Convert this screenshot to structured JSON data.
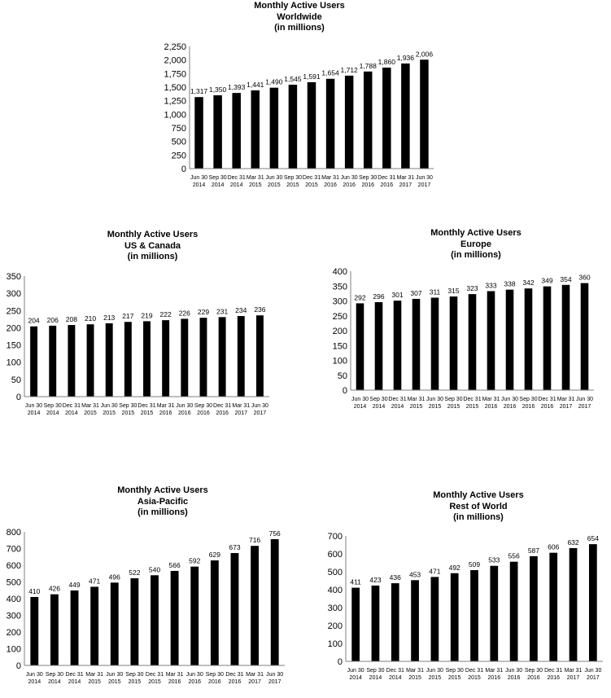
{
  "chart_data": [
    {
      "id": "worldwide",
      "type": "bar",
      "title": "Monthly Active Users",
      "subtitle": "Worldwide",
      "unit_label": "(in millions)",
      "categories": [
        [
          "Jun 30",
          "2014"
        ],
        [
          "Sep 30",
          "2014"
        ],
        [
          "Dec 31",
          "2014"
        ],
        [
          "Mar 31",
          "2015"
        ],
        [
          "Jun 30",
          "2015"
        ],
        [
          "Sep 30",
          "2015"
        ],
        [
          "Dec 31",
          "2015"
        ],
        [
          "Mar 31",
          "2016"
        ],
        [
          "Jun 30",
          "2016"
        ],
        [
          "Sep 30",
          "2016"
        ],
        [
          "Dec 31",
          "2016"
        ],
        [
          "Mar 31",
          "2017"
        ],
        [
          "Jun 30",
          "2017"
        ]
      ],
      "values": [
        1317,
        1350,
        1393,
        1441,
        1490,
        1545,
        1591,
        1654,
        1712,
        1788,
        1860,
        1936,
        2006
      ],
      "value_labels": [
        "1,317",
        "1,350",
        "1,393",
        "1,441",
        "1,490",
        "1,545",
        "1,591",
        "1,654",
        "1,712",
        "1,788",
        "1,860",
        "1,936",
        "2,006"
      ],
      "ylim": [
        0,
        2250
      ],
      "yticks": [
        0,
        250,
        500,
        750,
        1000,
        1250,
        1500,
        1750,
        2000,
        2250
      ],
      "ytick_labels": [
        "0",
        "250",
        "500",
        "750",
        "1,000",
        "1,250",
        "1,500",
        "1,750",
        "2,000",
        "2,250"
      ],
      "bar_color": "#000000",
      "grid": false
    },
    {
      "id": "us-canada",
      "type": "bar",
      "title": "Monthly Active Users",
      "subtitle": "US & Canada",
      "unit_label": "(in millions)",
      "categories": [
        [
          "Jun 30",
          "2014"
        ],
        [
          "Sep 30",
          "2014"
        ],
        [
          "Dec 31",
          "2014"
        ],
        [
          "Mar 31",
          "2015"
        ],
        [
          "Jun 30",
          "2015"
        ],
        [
          "Sep 30",
          "2015"
        ],
        [
          "Dec 31",
          "2015"
        ],
        [
          "Mar 31",
          "2016"
        ],
        [
          "Jun 30",
          "2016"
        ],
        [
          "Sep 30",
          "2016"
        ],
        [
          "Dec 31",
          "2016"
        ],
        [
          "Mar 31",
          "2017"
        ],
        [
          "Jun 30",
          "2017"
        ]
      ],
      "values": [
        204,
        206,
        208,
        210,
        213,
        217,
        219,
        222,
        226,
        229,
        231,
        234,
        236
      ],
      "value_labels": [
        "204",
        "206",
        "208",
        "210",
        "213",
        "217",
        "219",
        "222",
        "226",
        "229",
        "231",
        "234",
        "236"
      ],
      "ylim": [
        0,
        350
      ],
      "yticks": [
        0,
        50,
        100,
        150,
        200,
        250,
        300,
        350
      ],
      "ytick_labels": [
        "0",
        "50",
        "100",
        "150",
        "200",
        "250",
        "300",
        "350"
      ],
      "bar_color": "#000000",
      "grid": false
    },
    {
      "id": "europe",
      "type": "bar",
      "title": "Monthly Active Users",
      "subtitle": "Europe",
      "unit_label": "(in millions)",
      "categories": [
        [
          "Jun 30",
          "2014"
        ],
        [
          "Sep 30",
          "2014"
        ],
        [
          "Dec 31",
          "2014"
        ],
        [
          "Mar 31",
          "2015"
        ],
        [
          "Jun 30",
          "2015"
        ],
        [
          "Sep 30",
          "2015"
        ],
        [
          "Dec 31",
          "2015"
        ],
        [
          "Mar 31",
          "2016"
        ],
        [
          "Jun 30",
          "2016"
        ],
        [
          "Sep 30",
          "2016"
        ],
        [
          "Dec 31",
          "2016"
        ],
        [
          "Mar 31",
          "2017"
        ],
        [
          "Jun 30",
          "2017"
        ]
      ],
      "values": [
        292,
        296,
        301,
        307,
        311,
        315,
        323,
        333,
        338,
        342,
        349,
        354,
        360
      ],
      "value_labels": [
        "292",
        "296",
        "301",
        "307",
        "311",
        "315",
        "323",
        "333",
        "338",
        "342",
        "349",
        "354",
        "360"
      ],
      "ylim": [
        0,
        400
      ],
      "yticks": [
        0,
        50,
        100,
        150,
        200,
        250,
        300,
        350,
        400
      ],
      "ytick_labels": [
        "0",
        "50",
        "100",
        "150",
        "200",
        "250",
        "300",
        "350",
        "400"
      ],
      "bar_color": "#000000",
      "grid": false
    },
    {
      "id": "asia-pacific",
      "type": "bar",
      "title": "Monthly Active Users",
      "subtitle": "Asia-Pacific",
      "unit_label": "(in millions)",
      "categories": [
        [
          "Jun 30",
          "2014"
        ],
        [
          "Sep 30",
          "2014"
        ],
        [
          "Dec 31",
          "2014"
        ],
        [
          "Mar 31",
          "2015"
        ],
        [
          "Jun 30",
          "2015"
        ],
        [
          "Sep 30",
          "2015"
        ],
        [
          "Dec 31",
          "2015"
        ],
        [
          "Mar 31",
          "2016"
        ],
        [
          "Jun 30",
          "2016"
        ],
        [
          "Sep 30",
          "2016"
        ],
        [
          "Dec 31",
          "2016"
        ],
        [
          "Mar 31",
          "2017"
        ],
        [
          "Jun 30",
          "2017"
        ]
      ],
      "values": [
        410,
        426,
        449,
        471,
        496,
        522,
        540,
        566,
        592,
        629,
        673,
        716,
        756
      ],
      "value_labels": [
        "410",
        "426",
        "449",
        "471",
        "496",
        "522",
        "540",
        "566",
        "592",
        "629",
        "673",
        "716",
        "756"
      ],
      "ylim": [
        0,
        800
      ],
      "yticks": [
        0,
        100,
        200,
        300,
        400,
        500,
        600,
        700,
        800
      ],
      "ytick_labels": [
        "0",
        "100",
        "200",
        "300",
        "400",
        "500",
        "600",
        "700",
        "800"
      ],
      "bar_color": "#000000",
      "grid": false
    },
    {
      "id": "rest-of-world",
      "type": "bar",
      "title": "Monthly Active Users",
      "subtitle": "Rest of World",
      "unit_label": "(in millions)",
      "categories": [
        [
          "Jun 30",
          "2014"
        ],
        [
          "Sep 30",
          "2014"
        ],
        [
          "Dec 31",
          "2014"
        ],
        [
          "Mar 31",
          "2015"
        ],
        [
          "Jun 30",
          "2015"
        ],
        [
          "Sep 30",
          "2015"
        ],
        [
          "Dec 31",
          "2015"
        ],
        [
          "Mar 31",
          "2016"
        ],
        [
          "Jun 30",
          "2016"
        ],
        [
          "Sep 30",
          "2016"
        ],
        [
          "Dec 31",
          "2016"
        ],
        [
          "Mar 31",
          "2017"
        ],
        [
          "Jun 30",
          "2017"
        ]
      ],
      "values": [
        411,
        423,
        436,
        453,
        471,
        492,
        509,
        533,
        556,
        587,
        606,
        632,
        654
      ],
      "value_labels": [
        "411",
        "423",
        "436",
        "453",
        "471",
        "492",
        "509",
        "533",
        "556",
        "587",
        "606",
        "632",
        "654"
      ],
      "ylim": [
        0,
        700
      ],
      "yticks": [
        0,
        100,
        200,
        300,
        400,
        500,
        600,
        700
      ],
      "ytick_labels": [
        "0",
        "100",
        "200",
        "300",
        "400",
        "500",
        "600",
        "700"
      ],
      "bar_color": "#000000",
      "grid": false
    }
  ]
}
